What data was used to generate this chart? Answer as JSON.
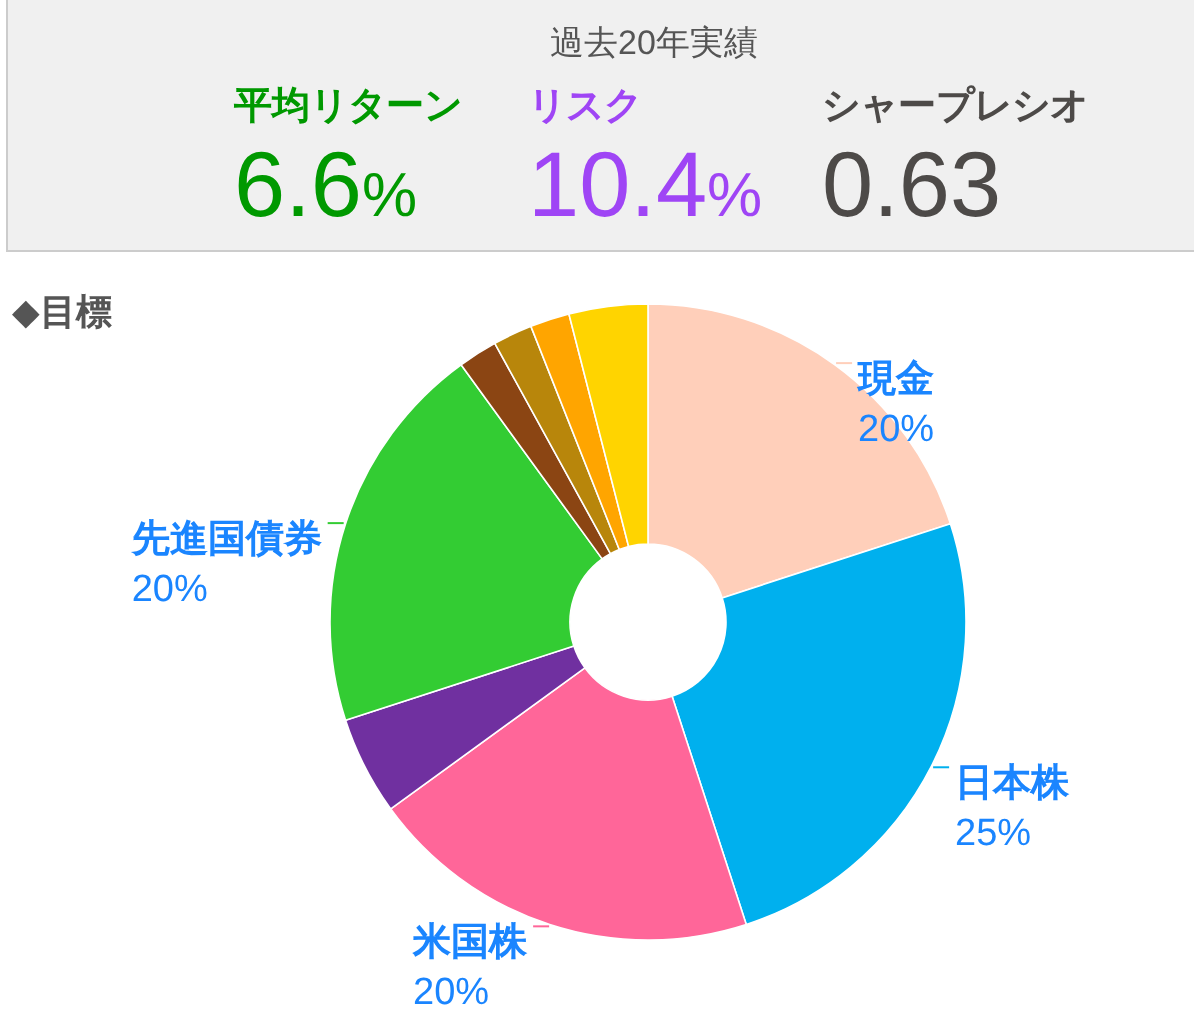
{
  "chart_data": [
    {
      "type": "other",
      "title": "過去20年実績",
      "categories": [
        "平均リターン",
        "リスク",
        "シャープレシオ"
      ],
      "values": [
        6.6,
        10.4,
        0.63
      ],
      "value_labels": [
        "6.6%",
        "10.4%",
        "0.63"
      ]
    },
    {
      "type": "donut",
      "title": "◆目標",
      "categories": [
        "現金",
        "日本株",
        "米国株",
        null,
        "先進国債券",
        null,
        null,
        null,
        null
      ],
      "values": [
        20,
        25,
        20,
        5,
        20,
        2,
        2,
        2,
        4
      ],
      "value_labels": [
        "20%",
        "25%",
        "20%",
        null,
        "20%",
        null,
        null,
        null,
        null
      ],
      "colors": [
        "#ffcfba",
        "#00b0ee",
        "#ff6699",
        "#7030a0",
        "#33cc33",
        "#8b4513",
        "#b8860b",
        "#ffa500",
        "#ffd400"
      ]
    }
  ]
}
